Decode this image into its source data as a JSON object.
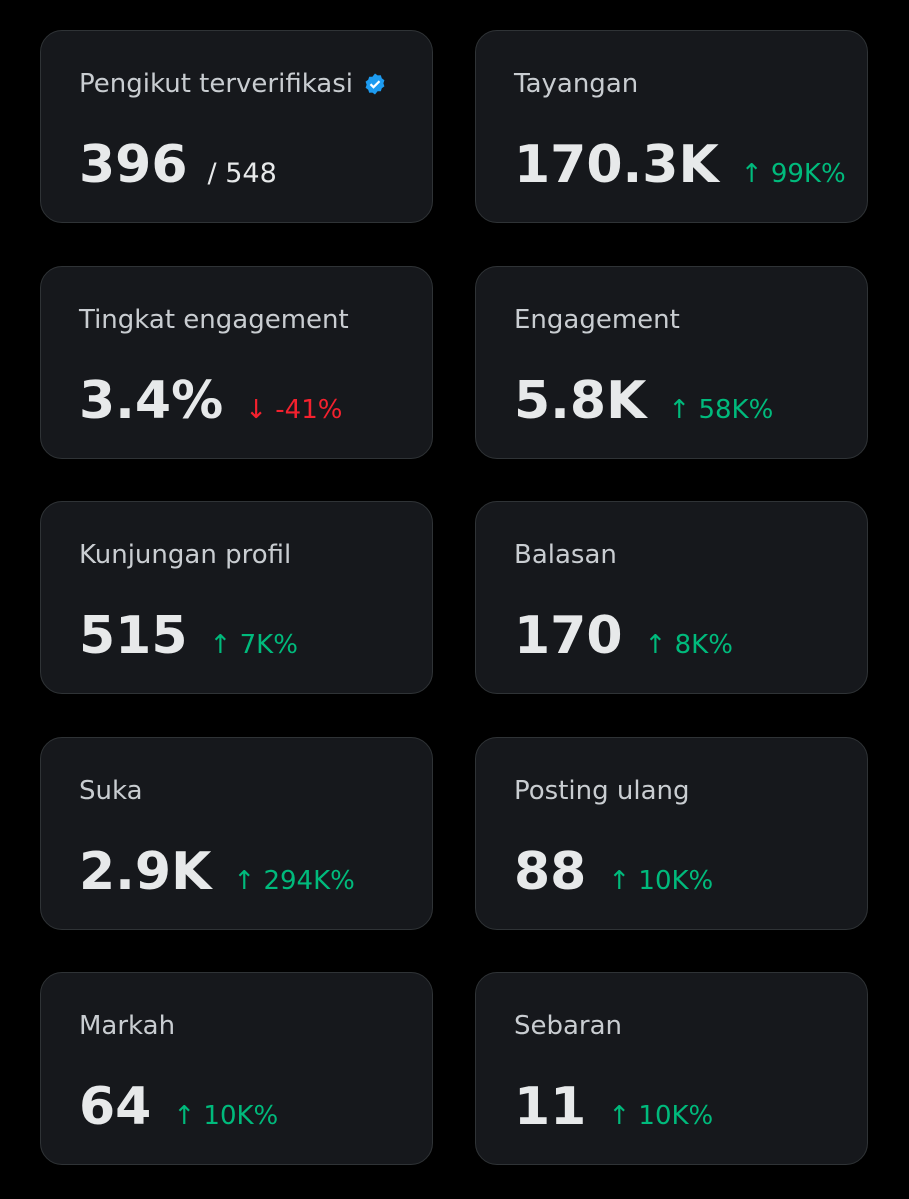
{
  "cards": [
    {
      "label": "Pengikut terverifikasi",
      "value": "396",
      "total": "/ 548",
      "verified": true
    },
    {
      "label": "Tayangan",
      "value": "170.3K",
      "change": "↑ 99K%",
      "change_color": "#00ba7c"
    },
    {
      "label": "Tingkat engagement",
      "value": "3.4%",
      "change": "↓ -41%",
      "change_color": "#f4212e"
    },
    {
      "label": "Engagement",
      "value": "5.8K",
      "change": "↑ 58K%",
      "change_color": "#00ba7c"
    },
    {
      "label": "Kunjungan profil",
      "value": "515",
      "change": "↑ 7K%",
      "change_color": "#00ba7c"
    },
    {
      "label": "Balasan",
      "value": "170",
      "change": "↑ 8K%",
      "change_color": "#00ba7c"
    },
    {
      "label": "Suka",
      "value": "2.9K",
      "change": "↑ 294K%",
      "change_color": "#00ba7c"
    },
    {
      "label": "Posting ulang",
      "value": "88",
      "change": "↑ 10K%",
      "change_color": "#00ba7c"
    },
    {
      "label": "Markah",
      "value": "64",
      "change": "↑ 10K%",
      "change_color": "#00ba7c"
    },
    {
      "label": "Sebaran",
      "value": "11",
      "change": "↑ 10K%",
      "change_color": "#00ba7c"
    }
  ]
}
